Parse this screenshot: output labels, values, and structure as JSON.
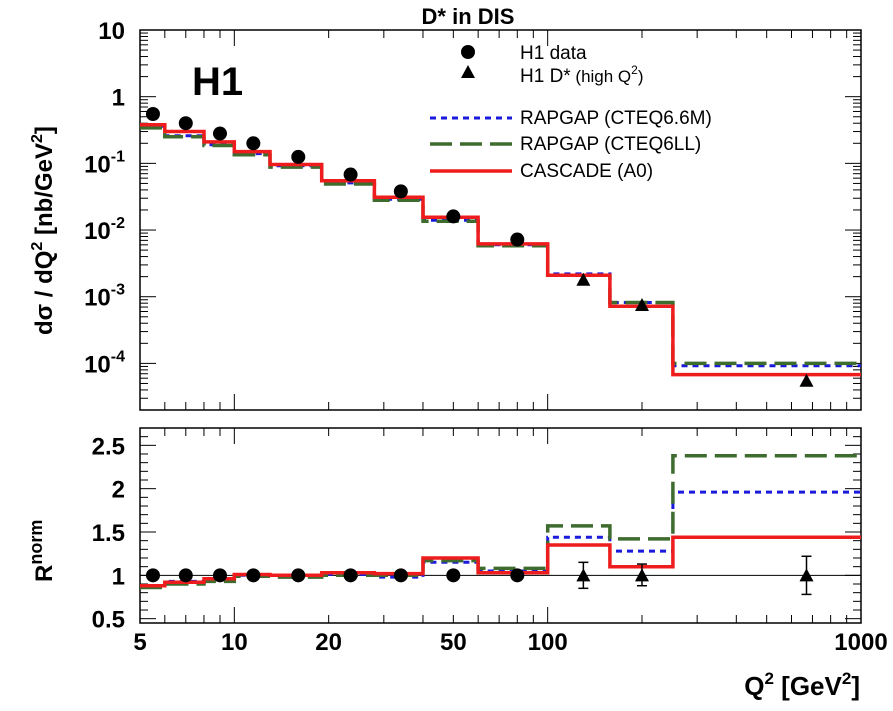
{
  "chart_data": [
    {
      "type": "line",
      "title": "D* in DIS",
      "experiment_label": "H1",
      "ylabel": {
        "main": "dσ / dQ",
        "sup": "2",
        "unit_open": " [nb/GeV",
        "unit_sup": "2",
        "unit_close": "]"
      },
      "xscale": "log",
      "yscale": "log",
      "xlim": [
        5,
        1000
      ],
      "ylim": [
        2e-05,
        10
      ],
      "yticks": [
        {
          "value": 10,
          "base": "10",
          "exp": ""
        },
        {
          "value": 1,
          "base": "1",
          "exp": ""
        },
        {
          "value": 0.1,
          "base": "10",
          "exp": "-1"
        },
        {
          "value": 0.01,
          "base": "10",
          "exp": "-2"
        },
        {
          "value": 0.001,
          "base": "10",
          "exp": "-3"
        },
        {
          "value": 0.0001,
          "base": "10",
          "exp": "-4"
        }
      ],
      "bin_edges": [
        5,
        6,
        8,
        10,
        13,
        19,
        28,
        40,
        60,
        100,
        158,
        251,
        1000
      ],
      "series": [
        {
          "name": "H1 data",
          "marker": "circle",
          "color": "#000000",
          "points": [
            {
              "x": 5.5,
              "y": 0.55
            },
            {
              "x": 7,
              "y": 0.4
            },
            {
              "x": 9,
              "y": 0.28
            },
            {
              "x": 11.5,
              "y": 0.2
            },
            {
              "x": 16,
              "y": 0.125
            },
            {
              "x": 23.5,
              "y": 0.068
            },
            {
              "x": 34,
              "y": 0.038
            },
            {
              "x": 50,
              "y": 0.016
            },
            {
              "x": 80,
              "y": 0.0072
            }
          ]
        },
        {
          "name": "H1 D*",
          "name_suffix": " (high Q",
          "name_sup": "2",
          "name_close": ")",
          "marker": "triangle",
          "color": "#000000",
          "points": [
            {
              "x": 130,
              "y": 0.0018
            },
            {
              "x": 200,
              "y": 0.00075
            },
            {
              "x": 670,
              "y": 5.5e-05
            }
          ]
        },
        {
          "name": "RAPGAP (CTEQ6.6M)",
          "style": "dotted",
          "color": "#1a1adc",
          "values": [
            0.36,
            0.26,
            0.19,
            0.14,
            0.092,
            0.051,
            0.029,
            0.014,
            0.006,
            0.0022,
            0.00082,
            9.2e-05
          ]
        },
        {
          "name": "RAPGAP (CTEQ6LL)",
          "style": "dashed",
          "color": "#3e6b2e",
          "values": [
            0.34,
            0.25,
            0.185,
            0.135,
            0.088,
            0.049,
            0.028,
            0.0135,
            0.0058,
            0.0021,
            0.00082,
            0.0001
          ]
        },
        {
          "name": "CASCADE (A0)",
          "style": "solid",
          "color": "#ee1c1c",
          "values": [
            0.38,
            0.3,
            0.21,
            0.15,
            0.096,
            0.055,
            0.031,
            0.0155,
            0.0062,
            0.0021,
            0.00072,
            6.8e-05
          ]
        }
      ]
    },
    {
      "type": "line",
      "ylabel": {
        "main": "R",
        "sup": "norm"
      },
      "xlabel": {
        "main": "Q",
        "sup": "2",
        "unit_open": " [GeV",
        "unit_sup": "2",
        "unit_close": "]"
      },
      "xscale": "log",
      "xlim": [
        5,
        1000
      ],
      "ylim": [
        0.45,
        2.7
      ],
      "xticks": [
        {
          "value": 5,
          "label": "5"
        },
        {
          "value": 10,
          "label": "10"
        },
        {
          "value": 20,
          "label": "20"
        },
        {
          "value": 50,
          "label": "50"
        },
        {
          "value": 100,
          "label": "100"
        },
        {
          "value": 1000,
          "label": "1000"
        }
      ],
      "yticks": [
        {
          "value": 0.5,
          "label": "0.5"
        },
        {
          "value": 1,
          "label": "1"
        },
        {
          "value": 1.5,
          "label": "1.5"
        },
        {
          "value": 2,
          "label": "2"
        },
        {
          "value": 2.5,
          "label": "2.5"
        }
      ],
      "reference_line": 1,
      "bin_edges": [
        5,
        6,
        8,
        10,
        13,
        19,
        28,
        40,
        60,
        100,
        158,
        251,
        1000
      ],
      "series": [
        {
          "name": "H1 data",
          "marker": "circle",
          "points": [
            {
              "x": 5.5,
              "y": 1
            },
            {
              "x": 7,
              "y": 1
            },
            {
              "x": 9,
              "y": 1
            },
            {
              "x": 11.5,
              "y": 1
            },
            {
              "x": 16,
              "y": 1
            },
            {
              "x": 23.5,
              "y": 1
            },
            {
              "x": 34,
              "y": 1
            },
            {
              "x": 50,
              "y": 1
            },
            {
              "x": 80,
              "y": 1
            }
          ]
        },
        {
          "name": "H1 D* (high Q2)",
          "marker": "triangle",
          "points": [
            {
              "x": 130,
              "y": 1,
              "err_low": 0.85,
              "err_high": 1.15
            },
            {
              "x": 200,
              "y": 1,
              "err_low": 0.88,
              "err_high": 1.13
            },
            {
              "x": 670,
              "y": 1,
              "err_low": 0.78,
              "err_high": 1.22
            }
          ]
        },
        {
          "name": "RAPGAP (CTEQ6.6M)",
          "style": "dotted",
          "color": "#1a1adc",
          "values": [
            0.88,
            0.93,
            0.95,
            1.0,
            1.0,
            1.01,
            0.98,
            1.15,
            1.05,
            1.44,
            1.28,
            1.96
          ]
        },
        {
          "name": "RAPGAP (CTEQ6LL)",
          "style": "dashed",
          "color": "#3e6b2e",
          "values": [
            0.86,
            0.9,
            0.93,
            0.99,
            0.98,
            1.0,
            1.0,
            1.17,
            1.08,
            1.57,
            1.42,
            2.38
          ]
        },
        {
          "name": "CASCADE (A0)",
          "style": "solid",
          "color": "#ee1c1c",
          "values": [
            0.88,
            0.92,
            0.96,
            1.01,
            1.0,
            1.03,
            1.02,
            1.2,
            1.03,
            1.35,
            1.1,
            1.44
          ]
        }
      ]
    }
  ]
}
